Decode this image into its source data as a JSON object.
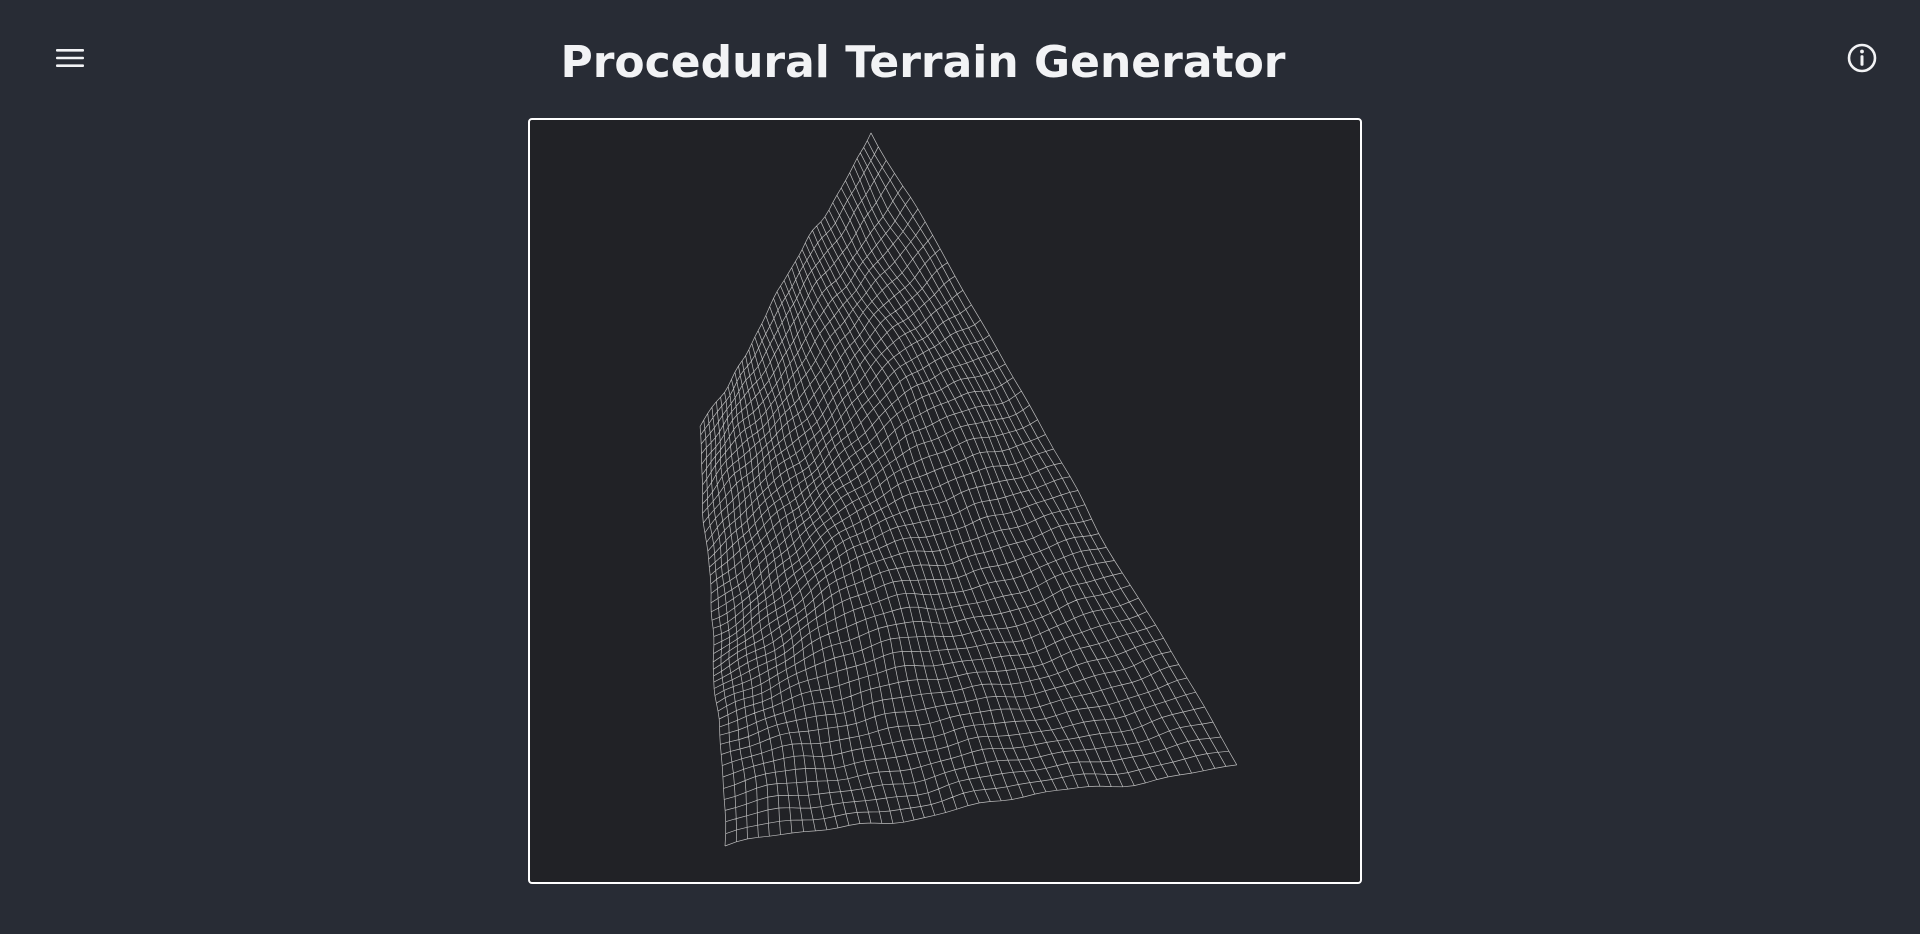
{
  "app": {
    "title": "Procedural Terrain Generator"
  },
  "header": {
    "menu_icon": "hamburger-menu-icon",
    "info_icon": "info-circle-icon"
  },
  "viewport": {
    "render_style": "wireframe",
    "background_color": "#212226",
    "wire_color": "#d9d9d9",
    "border_color": "#ffffff"
  }
}
